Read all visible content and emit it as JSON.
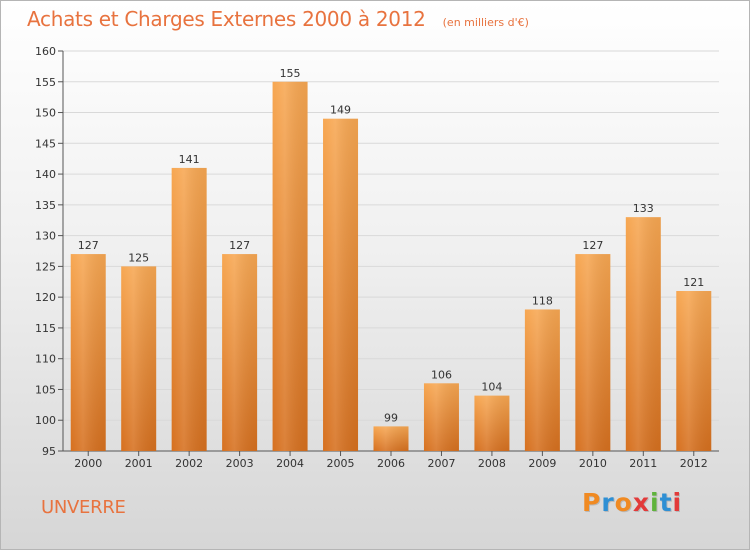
{
  "title": "Achats et Charges Externes 2000 à 2012",
  "subtitle": "(en milliers d'€)",
  "place": "UNVERRE",
  "logo": {
    "text": "Proxiti",
    "colors": [
      "#f08a22",
      "#2e8fd4",
      "#f08a22",
      "#e23a3a",
      "#5fb33c",
      "#2e8fd4",
      "#e23a3a"
    ]
  },
  "colors": {
    "bar_light": "#f7a752",
    "bar_dark": "#d6701f",
    "accent": "#e8733f",
    "grid": "#d9d9d9",
    "axis": "#555555"
  },
  "chart_data": {
    "type": "bar",
    "title": "Achats et Charges Externes 2000 à 2012",
    "subtitle": "(en milliers d'€)",
    "categories": [
      "2000",
      "2001",
      "2002",
      "2003",
      "2004",
      "2005",
      "2006",
      "2007",
      "2008",
      "2009",
      "2010",
      "2011",
      "2012"
    ],
    "values": [
      127,
      125,
      141,
      127,
      155,
      149,
      99,
      106,
      104,
      118,
      127,
      133,
      121
    ],
    "ylim": [
      95,
      160
    ],
    "yticks": [
      95,
      100,
      105,
      110,
      115,
      120,
      125,
      130,
      135,
      140,
      145,
      150,
      155,
      160
    ],
    "grid": true,
    "xlabel": "",
    "ylabel": ""
  }
}
